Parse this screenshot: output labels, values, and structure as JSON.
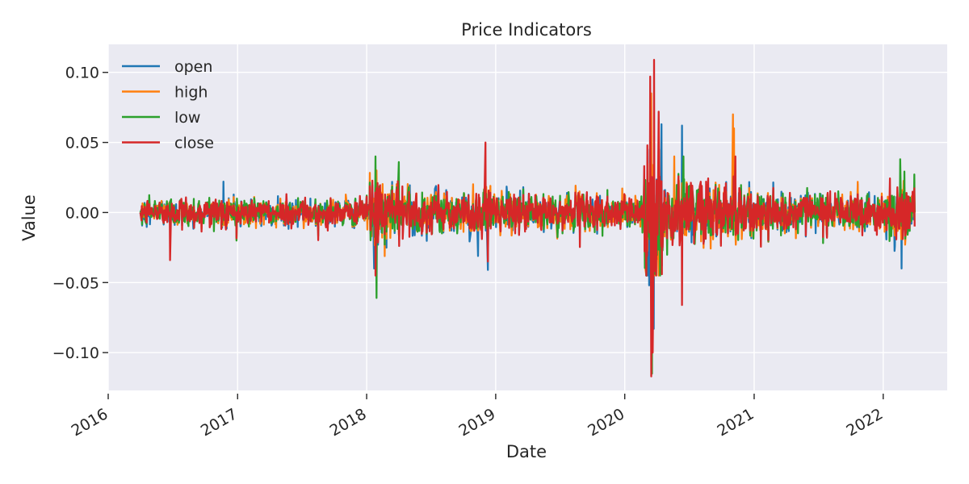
{
  "chart_data": {
    "type": "line",
    "title": "Price Indicators",
    "xlabel": "Date",
    "ylabel": "Value",
    "x_range": [
      "2016-01-01",
      "2022-07-01"
    ],
    "ylim": [
      -0.127,
      0.12
    ],
    "x_ticks": [
      "2016",
      "2017",
      "2018",
      "2019",
      "2020",
      "2021",
      "2022"
    ],
    "y_ticks": [
      0.1,
      0.05,
      0.0,
      -0.05,
      -0.1
    ],
    "y_tick_labels": [
      "0.10",
      "0.05",
      "0.00",
      "−0.05",
      "−0.10"
    ],
    "grid": true,
    "legend": "top-left",
    "x_start_date": "2016-04-01",
    "x_end_date": "2022-03-31",
    "series": [
      {
        "name": "open",
        "color": "#1f77b4",
        "anchors": [
          [
            "2016-04-01",
            0.0
          ],
          [
            "2016-11-22",
            0.022
          ],
          [
            "2018-01-22",
            -0.04
          ],
          [
            "2018-11-12",
            -0.031
          ],
          [
            "2018-12-10",
            -0.041
          ],
          [
            "2020-03-10",
            -0.052
          ],
          [
            "2020-03-23",
            -0.083
          ],
          [
            "2020-04-14",
            0.063
          ],
          [
            "2020-06-11",
            0.062
          ],
          [
            "2022-02-22",
            -0.04
          ],
          [
            "2022-03-31",
            0.0
          ]
        ]
      },
      {
        "name": "high",
        "color": "#ff7f0e",
        "anchors": [
          [
            "2016-04-01",
            0.0
          ],
          [
            "2018-01-29",
            0.03
          ],
          [
            "2020-03-16",
            0.085
          ],
          [
            "2020-05-20",
            0.04
          ],
          [
            "2020-11-02",
            0.07
          ],
          [
            "2020-11-05",
            0.06
          ],
          [
            "2022-03-31",
            0.0
          ]
        ]
      },
      {
        "name": "low",
        "color": "#2ca02c",
        "anchors": [
          [
            "2016-04-01",
            0.0
          ],
          [
            "2018-01-26",
            0.04
          ],
          [
            "2018-01-29",
            -0.061
          ],
          [
            "2018-04-02",
            0.036
          ],
          [
            "2020-03-18",
            -0.115
          ],
          [
            "2020-06-15",
            0.04
          ],
          [
            "2020-11-09",
            0.03
          ],
          [
            "2022-02-18",
            0.038
          ],
          [
            "2022-03-31",
            0.0
          ]
        ]
      },
      {
        "name": "close",
        "color": "#d62728",
        "anchors": [
          [
            "2016-04-01",
            0.0
          ],
          [
            "2016-06-24",
            -0.034
          ],
          [
            "2018-01-26",
            -0.045
          ],
          [
            "2018-12-03",
            0.05
          ],
          [
            "2018-12-10",
            -0.035
          ],
          [
            "2020-03-05",
            0.048
          ],
          [
            "2020-03-13",
            0.097
          ],
          [
            "2020-03-16",
            -0.117
          ],
          [
            "2020-03-20",
            -0.1
          ],
          [
            "2020-03-24",
            0.109
          ],
          [
            "2020-04-06",
            0.072
          ],
          [
            "2020-06-11",
            -0.066
          ],
          [
            "2020-11-09",
            0.04
          ],
          [
            "2022-03-31",
            -0.01
          ]
        ]
      }
    ]
  }
}
